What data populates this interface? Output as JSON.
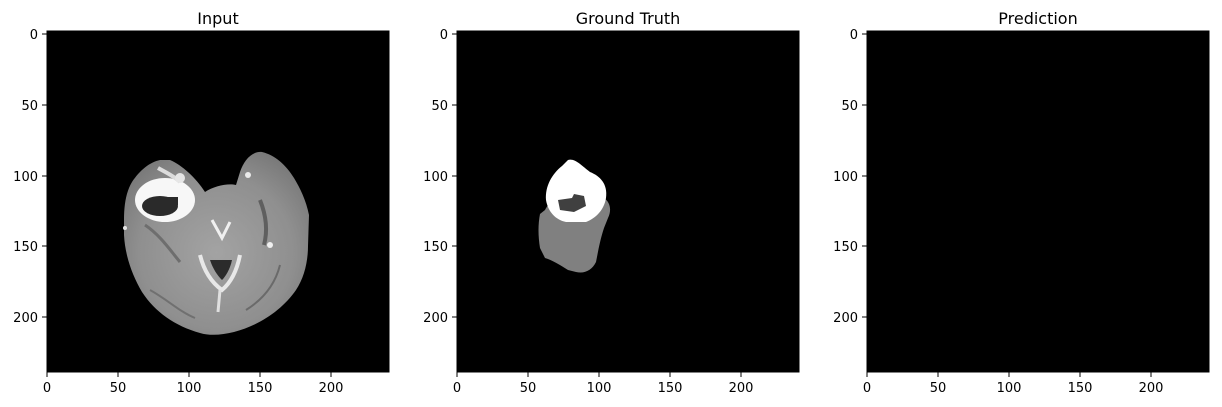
{
  "figure": {
    "background": "#ffffff",
    "panels": [
      {
        "title": "Input",
        "content": "grayscale axial brain MRI slice with bright ring-enhancing lesion in left hemisphere",
        "xticks": [
          "0",
          "50",
          "100",
          "150",
          "200"
        ],
        "yticks": [
          "0",
          "50",
          "100",
          "150",
          "200"
        ],
        "xlim": [
          0,
          240
        ],
        "ylim": [
          240,
          0
        ]
      },
      {
        "title": "Ground Truth",
        "content": "segmentation mask: white enhancing region, dark gray core, mid gray edema",
        "xticks": [
          "0",
          "50",
          "100",
          "150",
          "200"
        ],
        "yticks": [
          "0",
          "50",
          "100",
          "150",
          "200"
        ],
        "xlim": [
          0,
          240
        ],
        "ylim": [
          240,
          0
        ]
      },
      {
        "title": "Prediction",
        "content": "empty (all black)",
        "xticks": [
          "0",
          "50",
          "100",
          "150",
          "200"
        ],
        "yticks": [
          "0",
          "50",
          "100",
          "150",
          "200"
        ],
        "xlim": [
          0,
          240
        ],
        "ylim": [
          240,
          0
        ]
      }
    ]
  }
}
